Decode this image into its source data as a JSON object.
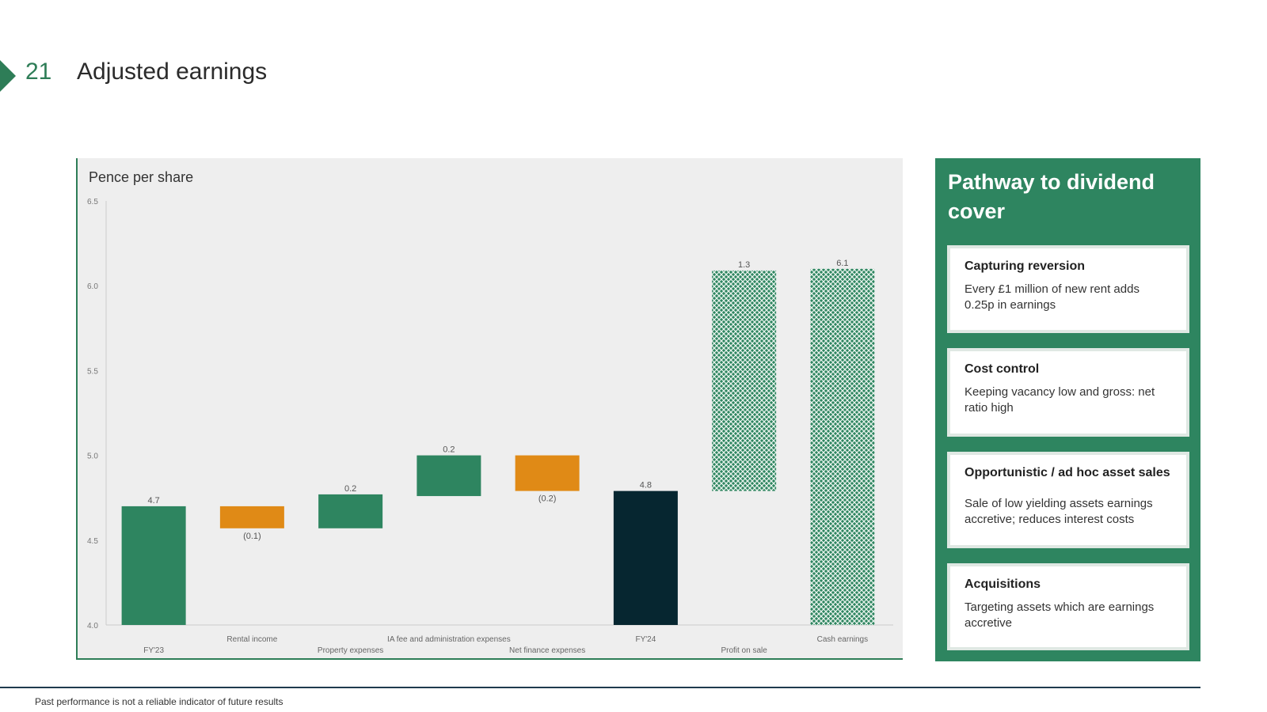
{
  "header": {
    "slide_number": "21",
    "title": "Adjusted earnings"
  },
  "chart_panel": {
    "units_label": "Pence per share"
  },
  "chart_data": {
    "type": "bar",
    "subtype": "waterfall",
    "ylabel": "Pence per share",
    "ylim": [
      4.0,
      6.5
    ],
    "yticks": [
      "4.0",
      "4.5",
      "5.0",
      "5.5",
      "6.0",
      "6.5"
    ],
    "bars": [
      {
        "category": "FY'23",
        "label": "4.7",
        "start": 4.0,
        "end": 4.7,
        "style": "total",
        "color": "#2e8560",
        "label_pos": "top",
        "cat_row": 2
      },
      {
        "category": "Rental income",
        "label": "(0.1)",
        "start": 4.7,
        "end": 4.57,
        "style": "decrease",
        "color": "#e08a16",
        "label_pos": "bottom",
        "cat_row": 1
      },
      {
        "category": "Property expenses",
        "label": "0.2",
        "start": 4.57,
        "end": 4.77,
        "style": "increase",
        "color": "#2e8560",
        "label_pos": "top",
        "cat_row": 2
      },
      {
        "category": "IA fee and administration expenses",
        "label": "0.2",
        "start": 4.76,
        "end": 5.0,
        "style": "increase",
        "color": "#2e8560",
        "label_pos": "top",
        "cat_row": 1
      },
      {
        "category": "Net finance expenses",
        "label": "(0.2)",
        "start": 5.0,
        "end": 4.79,
        "style": "decrease",
        "color": "#e08a16",
        "label_pos": "bottom",
        "cat_row": 2
      },
      {
        "category": "FY'24",
        "label": "4.8",
        "start": 4.0,
        "end": 4.79,
        "style": "total",
        "color": "#062630",
        "label_pos": "top",
        "cat_row": 1
      },
      {
        "category": "Profit on sale",
        "label": "1.3",
        "start": 4.79,
        "end": 6.09,
        "style": "hatched",
        "color": "#2e8560",
        "label_pos": "top",
        "cat_row": 2
      },
      {
        "category": "Cash earnings",
        "label": "6.1",
        "start": 4.0,
        "end": 6.1,
        "style": "hatched",
        "color": "#2e8560",
        "label_pos": "top",
        "cat_row": 1
      }
    ]
  },
  "side_panel": {
    "title": "Pathway to dividend cover",
    "cards": [
      {
        "heading": "Capturing reversion",
        "body": "Every £1 million of new rent adds 0.25p in earnings"
      },
      {
        "heading": "Cost control",
        "body": "Keeping vacancy low and gross: net ratio high"
      },
      {
        "heading": "Opportunistic / ad hoc asset sales",
        "body": "Sale of low yielding assets earnings accretive; reduces interest costs"
      },
      {
        "heading": "Acquisitions",
        "body": "Targeting assets which are earnings accretive"
      }
    ]
  },
  "footer": {
    "note": "Past performance is not a reliable indicator of future results"
  }
}
